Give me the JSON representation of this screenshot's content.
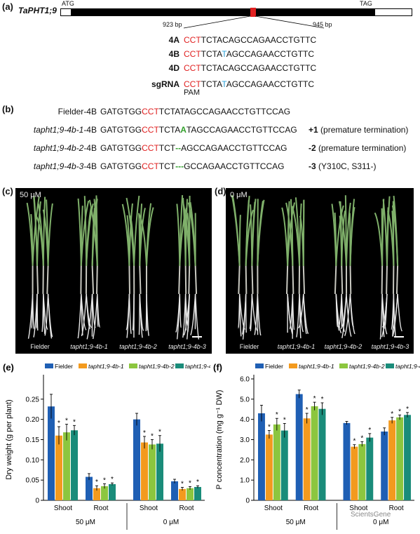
{
  "panel_a": {
    "label": "(a)",
    "gene": "TaPHT1;9",
    "atg": "ATG",
    "tag": "TAG",
    "pos_left": "923 bp",
    "pos_right": "945 bp",
    "rows": [
      {
        "name": "4A",
        "pre": "CCT",
        "mid": "TCTAC",
        "var": "",
        "post": "AGCCAGAACCTGTTC"
      },
      {
        "name": "4B",
        "pre": "CCT",
        "mid": "TCTA",
        "var": "T",
        "post": "AGCCAGAACCTGTTC"
      },
      {
        "name": "4D",
        "pre": "CCT",
        "mid": "TCTAC",
        "var": "",
        "post": "AGCCAGAACCTGTTC"
      },
      {
        "name": "sgRNA",
        "pre": "CCT",
        "mid": "TCTA",
        "var": "T",
        "post": "AGCCAGAACCTGTTC"
      }
    ],
    "pam": "PAM"
  },
  "panel_b": {
    "label": "(b)",
    "rows": [
      {
        "name": "Fielder",
        "suffix": "-4B",
        "italic": false,
        "pre": "GATGTGG",
        "red": "CCT",
        "mid": "TCTA",
        "ins": "",
        "post": "TAGCCAGAACCTGTTCCAG",
        "effect": "",
        "note": ""
      },
      {
        "name": "tapht1;9-4b-1",
        "suffix": "-4B",
        "italic": true,
        "pre": "GATGTGG",
        "red": "CCT",
        "mid": "TCTA",
        "ins": "A",
        "post": "TAGCCAGAACCTGTTCCAG",
        "effect": "+1",
        "note": "(premature termination)"
      },
      {
        "name": "tapht1;9-4b-2",
        "suffix": "-4B",
        "italic": true,
        "pre": "GATGTGG",
        "red": "CCT",
        "mid": "TCT",
        "ins": "--",
        "post": "AGCCAGAACCTGTTCCAG",
        "effect": "-2",
        "note": "(premature termination)"
      },
      {
        "name": "tapht1;9-4b-3",
        "suffix": "-4B",
        "italic": true,
        "pre": "GATGTGG",
        "red": "CCT",
        "mid": "TCT",
        "ins": "---",
        "post": "GCCAGAACCTGTTCCAG",
        "effect": "-3",
        "note": "(Y310C, S311-)"
      }
    ]
  },
  "panel_c": {
    "label": "(c)",
    "condition": "50 μM",
    "plants": [
      "Fielder",
      "tapht1;9-4b-1",
      "tapht1;9-4b-2",
      "tapht1;9-4b-3"
    ]
  },
  "panel_d": {
    "label": "(d)",
    "condition": "0 μM",
    "plants": [
      "Fielder",
      "tapht1;9-4b-1",
      "tapht1;9-4b-2",
      "tapht1;9-4b-3"
    ]
  },
  "colors": {
    "fielder": "#1f5fb4",
    "b1": "#f39a1e",
    "b2": "#8cc63f",
    "b3": "#1a8c7a",
    "red": "#e02020",
    "blue": "#2aa0d8"
  },
  "chart_data": [
    {
      "panel": "(e)",
      "type": "bar",
      "ylabel": "Dry weight (g per plant)",
      "ylim": [
        0,
        0.3
      ],
      "yticks": [
        "0",
        "0.05",
        "0.10",
        "0.15",
        "0.20",
        "0.25"
      ],
      "categories": [
        "Shoot",
        "Root",
        "Shoot",
        "Root"
      ],
      "groups": [
        "50 μM",
        "0 μM"
      ],
      "series": [
        {
          "name": "Fielder",
          "values": [
            0.232,
            0.058,
            0.2,
            0.047
          ],
          "err": [
            0.03,
            0.008,
            0.015,
            0.005
          ],
          "sig": [
            "",
            "",
            "",
            ""
          ]
        },
        {
          "name": "tapht1;9-4b-1",
          "values": [
            0.16,
            0.03,
            0.143,
            0.028
          ],
          "err": [
            0.022,
            0.006,
            0.015,
            0.004
          ],
          "sig": [
            "*",
            "*",
            "*",
            "*"
          ]
        },
        {
          "name": "tapht1;9-4b-2",
          "values": [
            0.168,
            0.035,
            0.138,
            0.03
          ],
          "err": [
            0.02,
            0.006,
            0.012,
            0.004
          ],
          "sig": [
            "*",
            "*",
            "*",
            "*"
          ]
        },
        {
          "name": "tapht1;9-4b-3",
          "values": [
            0.173,
            0.04,
            0.14,
            0.033
          ],
          "err": [
            0.012,
            0.003,
            0.02,
            0.003
          ],
          "sig": [
            "*",
            "*",
            "*",
            "*"
          ]
        }
      ]
    },
    {
      "panel": "(f)",
      "type": "bar",
      "ylabel": "P concentration (mg g⁻¹ DW)",
      "ylim": [
        0,
        6
      ],
      "yticks": [
        "0",
        "1.0",
        "2.0",
        "3.0",
        "4.0",
        "5.0",
        "6.0"
      ],
      "categories": [
        "Shoot",
        "Root",
        "Shoot",
        "Root"
      ],
      "groups": [
        "50 μM",
        "0 μM"
      ],
      "series": [
        {
          "name": "Fielder",
          "values": [
            4.3,
            5.25,
            3.82,
            3.4
          ],
          "err": [
            0.4,
            0.2,
            0.08,
            0.18
          ],
          "sig": [
            "",
            "",
            "",
            ""
          ]
        },
        {
          "name": "tapht1;9-4b-1",
          "values": [
            3.25,
            4.05,
            2.65,
            3.95
          ],
          "err": [
            0.2,
            0.25,
            0.1,
            0.15
          ],
          "sig": [
            "*",
            "*",
            "*",
            "*"
          ]
        },
        {
          "name": "tapht1;9-4b-2",
          "values": [
            3.75,
            4.65,
            2.78,
            4.1
          ],
          "err": [
            0.3,
            0.2,
            0.12,
            0.12
          ],
          "sig": [
            "*",
            "*",
            "*",
            "*"
          ]
        },
        {
          "name": "tapht1;9-4b-3",
          "values": [
            3.45,
            4.52,
            3.1,
            4.22
          ],
          "err": [
            0.35,
            0.3,
            0.2,
            0.12
          ],
          "sig": [
            "*",
            "*",
            "*",
            "*"
          ]
        }
      ]
    }
  ],
  "watermark": "ScientsGene"
}
